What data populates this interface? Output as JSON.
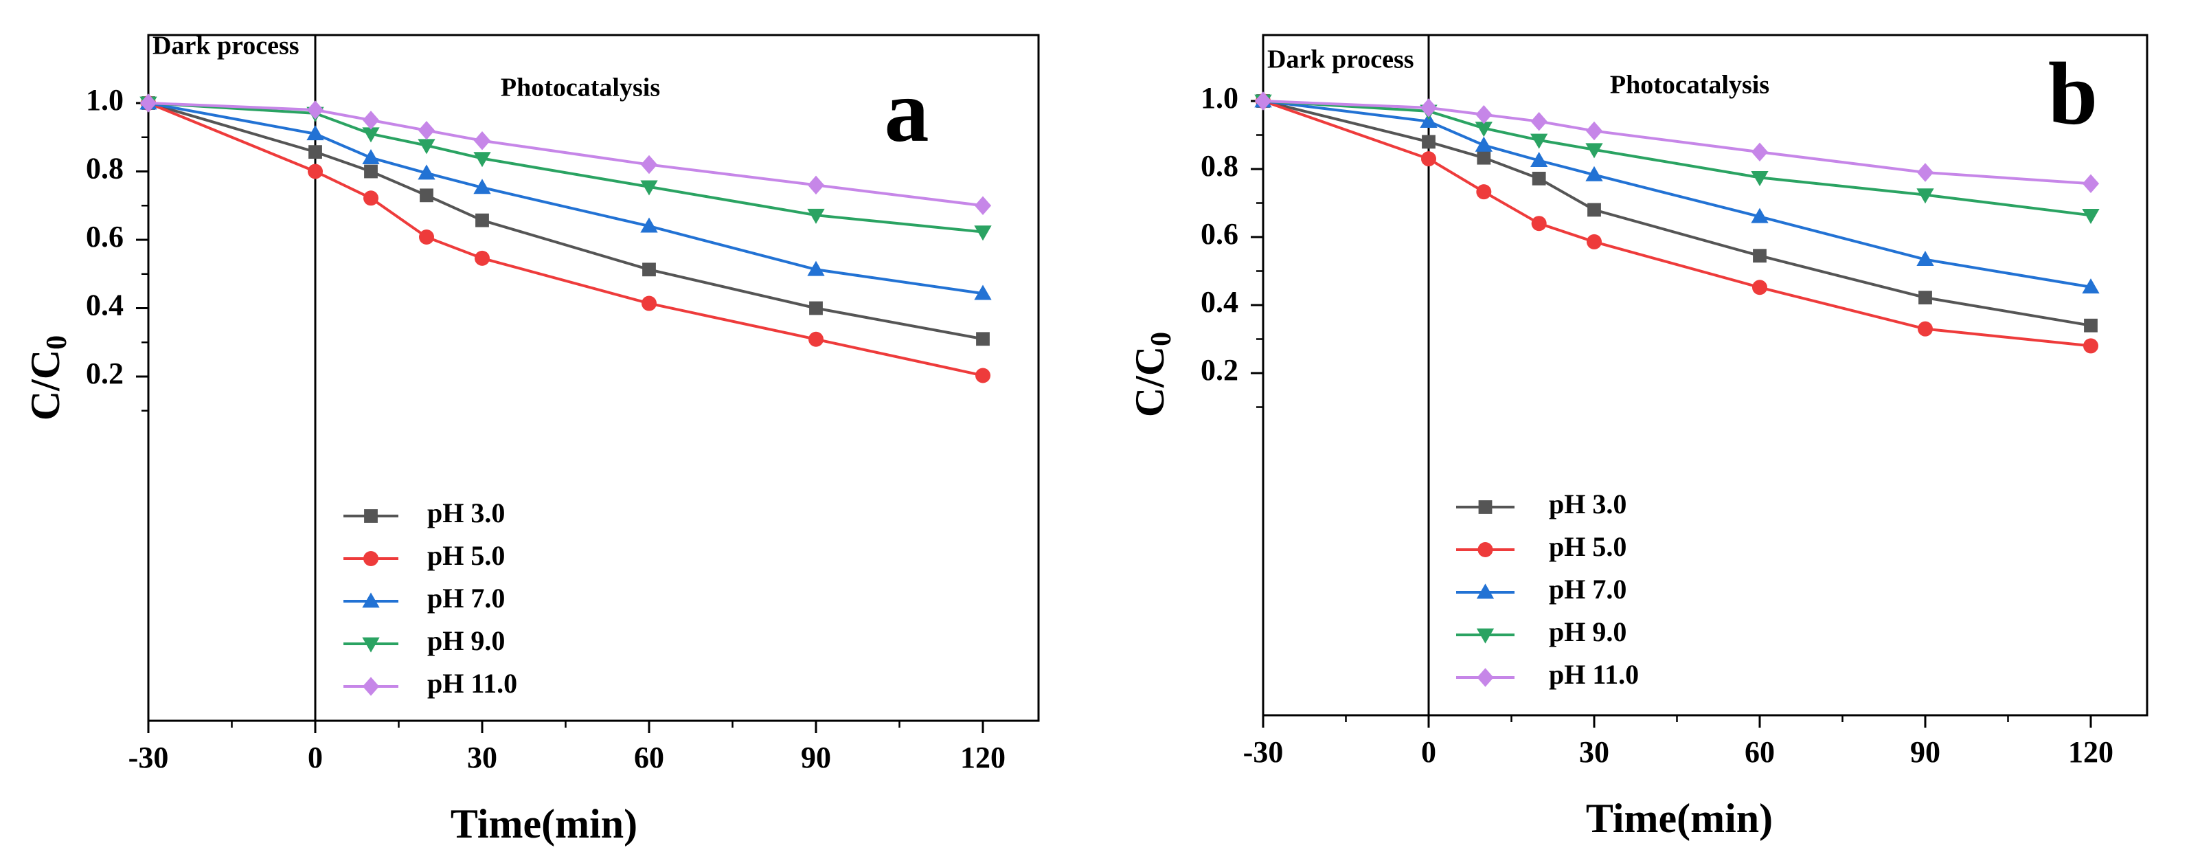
{
  "figure": {
    "panels": [
      {
        "letter": "a",
        "annotation_dark": "Dark process",
        "annotation_photo": "Photocatalysis"
      },
      {
        "letter": "b",
        "annotation_dark": "Dark process",
        "annotation_photo": "Photocatalysis"
      }
    ]
  },
  "chart_data": [
    {
      "type": "line",
      "panel": "a",
      "xlabel": "Time(min)",
      "ylabel_main": "C/C",
      "ylabel_sub": "0",
      "xlim": [
        -30,
        130
      ],
      "ylim": [
        0.1,
        1.1
      ],
      "xticks": [
        -30,
        0,
        30,
        60,
        90,
        120
      ],
      "xtick_labels": [
        "-30",
        "0",
        "30",
        "60",
        "90",
        "120"
      ],
      "yticks": [
        0.2,
        0.4,
        0.6,
        0.8,
        1.0
      ],
      "ytick_labels": [
        "0.2",
        "0.4",
        "0.6",
        "0.8",
        "1.0"
      ],
      "grid": false,
      "legend_position": "bottom-left",
      "x": [
        -30,
        0,
        10,
        20,
        30,
        60,
        90,
        120
      ],
      "series": [
        {
          "name": "pH 3.0",
          "color": "#555555",
          "marker": "square",
          "values": [
            1.0,
            0.857,
            0.8,
            0.73,
            0.657,
            0.513,
            0.4,
            0.31
          ]
        },
        {
          "name": "pH 5.0",
          "color": "#ee3b3b",
          "marker": "circle",
          "values": [
            1.0,
            0.8,
            0.722,
            0.608,
            0.546,
            0.414,
            0.309,
            0.203
          ]
        },
        {
          "name": "pH 7.0",
          "color": "#2272d4",
          "marker": "triangle-up",
          "values": [
            1.0,
            0.91,
            0.84,
            0.795,
            0.753,
            0.64,
            0.513,
            0.443
          ]
        },
        {
          "name": "pH 9.0",
          "color": "#2aa362",
          "marker": "triangle-down",
          "values": [
            1.0,
            0.97,
            0.91,
            0.876,
            0.838,
            0.755,
            0.672,
            0.623
          ]
        },
        {
          "name": "pH 11.0",
          "color": "#c686e8",
          "marker": "diamond",
          "values": [
            1.0,
            0.98,
            0.95,
            0.92,
            0.89,
            0.82,
            0.76,
            0.7
          ]
        }
      ]
    },
    {
      "type": "line",
      "panel": "b",
      "xlabel": "Time(min)",
      "ylabel_main": "C/C",
      "ylabel_sub": "0",
      "xlim": [
        -30,
        130
      ],
      "ylim": [
        0.1,
        1.1
      ],
      "xticks": [
        -30,
        0,
        30,
        60,
        90,
        120
      ],
      "xtick_labels": [
        "-30",
        "0",
        "30",
        "60",
        "90",
        "120"
      ],
      "yticks": [
        0.2,
        0.4,
        0.6,
        0.8,
        1.0
      ],
      "ytick_labels": [
        "0.2",
        "0.4",
        "0.6",
        "0.8",
        "1.0"
      ],
      "grid": false,
      "legend_position": "bottom-left",
      "x": [
        -30,
        0,
        10,
        20,
        30,
        60,
        90,
        120
      ],
      "series": [
        {
          "name": "pH 3.0",
          "color": "#555555",
          "marker": "square",
          "values": [
            1.0,
            0.88,
            0.833,
            0.772,
            0.68,
            0.545,
            0.422,
            0.34
          ]
        },
        {
          "name": "pH 5.0",
          "color": "#ee3b3b",
          "marker": "circle",
          "values": [
            1.0,
            0.83,
            0.733,
            0.64,
            0.586,
            0.452,
            0.33,
            0.28
          ]
        },
        {
          "name": "pH 7.0",
          "color": "#2272d4",
          "marker": "triangle-up",
          "values": [
            1.0,
            0.94,
            0.87,
            0.825,
            0.783,
            0.66,
            0.534,
            0.453
          ]
        },
        {
          "name": "pH 9.0",
          "color": "#2aa362",
          "marker": "triangle-down",
          "values": [
            1.0,
            0.97,
            0.92,
            0.885,
            0.857,
            0.775,
            0.724,
            0.664
          ]
        },
        {
          "name": "pH 11.0",
          "color": "#c686e8",
          "marker": "diamond",
          "values": [
            1.0,
            0.98,
            0.96,
            0.94,
            0.912,
            0.85,
            0.79,
            0.757
          ]
        }
      ]
    }
  ]
}
